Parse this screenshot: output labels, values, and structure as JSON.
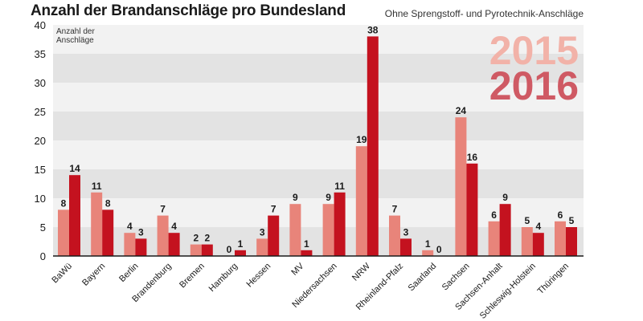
{
  "title": "Anzahl der Brandanschläge pro Bundesland",
  "subtitle": "Ohne Sprengstoff- und Pyrotechnik-Anschläge",
  "colors": {
    "series_2015": "#e8847a",
    "series_2016": "#c4121f",
    "band_dark": "#e3e3e3",
    "band_light": "#f2f2f2",
    "axis": "#1a1a1a"
  },
  "chart_data": {
    "type": "bar",
    "ylabel": "Anzahl der Anschläge",
    "ylim": [
      0,
      40
    ],
    "yticks": [
      0,
      5,
      10,
      15,
      20,
      25,
      30,
      35,
      40
    ],
    "grid": "alternating horizontal bands",
    "legend_placement": "top-right",
    "categories": [
      "BaWü",
      "Bayern",
      "Berlin",
      "Brandenburg",
      "Bremen",
      "Hamburg",
      "Hessen",
      "MV",
      "Niedersachsen",
      "NRW",
      "Rheinland-Pfalz",
      "Saarland",
      "Sachsen",
      "Sachsen-Anhalt",
      "Schleswig-Holstein",
      "Thüringen"
    ],
    "series": [
      {
        "name": "2015",
        "values": [
          8,
          11,
          4,
          7,
          2,
          0,
          3,
          9,
          9,
          19,
          7,
          1,
          24,
          6,
          5,
          6
        ]
      },
      {
        "name": "2016",
        "values": [
          14,
          8,
          3,
          4,
          2,
          1,
          7,
          1,
          11,
          38,
          3,
          0,
          16,
          9,
          4,
          5
        ]
      }
    ]
  }
}
